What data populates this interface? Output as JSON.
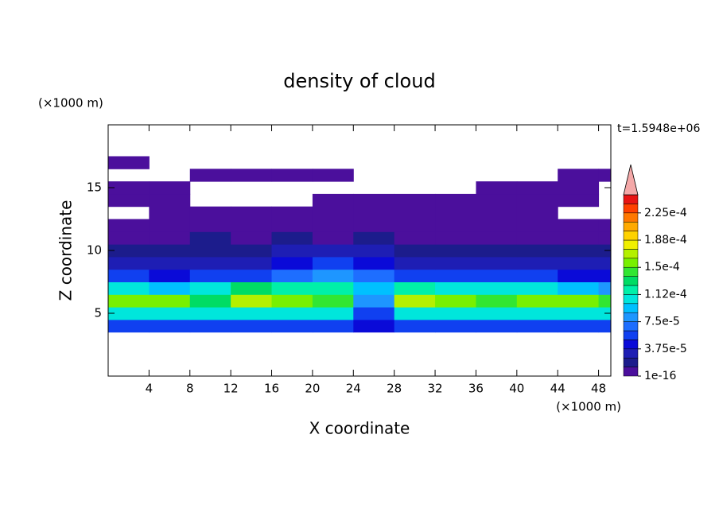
{
  "chart_data": {
    "type": "contour",
    "title": "density of cloud",
    "x_label": "X coordinate",
    "y_label": "Z coordinate",
    "x_unit": "(×1000 m)",
    "y_unit": "(×1000 m)",
    "annotation": "t=1.5948e+06",
    "xlim": [
      0,
      49.2
    ],
    "ylim": [
      0,
      20
    ],
    "xticks": [
      4,
      8,
      12,
      16,
      20,
      24,
      28,
      32,
      36,
      40,
      44,
      48
    ],
    "yticks": [
      5,
      10,
      15
    ],
    "x": [
      2,
      6,
      10,
      14,
      18,
      22,
      26,
      30,
      34,
      38,
      42,
      46,
      50
    ],
    "z": [
      4,
      5,
      6,
      7,
      8,
      9,
      10,
      11,
      12,
      13,
      14,
      15,
      16,
      17
    ],
    "values": [
      [
        5e-05,
        5e-05,
        5e-05,
        5e-05,
        5e-05,
        5e-05,
        4e-05,
        5e-05,
        5e-05,
        5e-05,
        5e-05,
        5e-05,
        5e-05
      ],
      [
        0.000105,
        0.0001,
        0.000105,
        0.00011,
        0.0001,
        0.0001,
        6e-05,
        0.000105,
        0.0001,
        0.0001,
        0.000105,
        0.0001,
        0.0001
      ],
      [
        0.00016,
        0.00016,
        0.00013,
        0.00017,
        0.000155,
        0.00014,
        8e-05,
        0.00017,
        0.00015,
        0.000145,
        0.00016,
        0.00016,
        0.00014
      ],
      [
        0.00011,
        9e-05,
        0.0001,
        0.000135,
        0.00012,
        0.000115,
        9e-05,
        0.00012,
        0.0001,
        0.0001,
        0.00011,
        9e-05,
        8e-05
      ],
      [
        5e-05,
        4e-05,
        5e-05,
        6e-05,
        7e-05,
        8e-05,
        7e-05,
        6e-05,
        5e-05,
        5e-05,
        5e-05,
        4e-05,
        4e-05
      ],
      [
        3e-05,
        2.5e-05,
        3e-05,
        3.5e-05,
        4e-05,
        5e-05,
        4e-05,
        3.5e-05,
        3e-05,
        3e-05,
        3e-05,
        2.5e-05,
        2.5e-05
      ],
      [
        1.5e-05,
        1.5e-05,
        2e-05,
        2e-05,
        2.5e-05,
        2.5e-05,
        2.5e-05,
        2e-05,
        2e-05,
        1.5e-05,
        1.5e-05,
        2e-05,
        2e-05
      ],
      [
        5e-06,
        8e-06,
        1.5e-05,
        1e-05,
        1.3e-05,
        1e-05,
        1.3e-05,
        1e-05,
        8e-06,
        5e-06,
        5e-06,
        5e-06,
        5e-06
      ],
      [
        1e-06,
        1e-06,
        1e-06,
        1e-06,
        1e-06,
        1e-06,
        1e-06,
        1e-06,
        1e-06,
        1e-06,
        1e-06,
        1e-06,
        1e-06
      ],
      [
        0,
        1e-06,
        1e-06,
        1e-06,
        1e-06,
        1e-06,
        1e-06,
        1e-06,
        1e-06,
        1e-06,
        1e-06,
        0,
        0
      ],
      [
        1e-06,
        1e-06,
        0,
        0,
        0,
        1e-06,
        1e-06,
        1e-06,
        1e-06,
        1e-06,
        1e-06,
        1e-06,
        0
      ],
      [
        1e-06,
        1e-06,
        0,
        0,
        0,
        0,
        0,
        0,
        0,
        1e-06,
        1e-06,
        1e-06,
        0
      ],
      [
        0,
        0,
        1e-06,
        1e-06,
        1e-06,
        1e-06,
        0,
        0,
        0,
        0,
        0,
        1e-06,
        1e-06
      ],
      [
        1e-06,
        0,
        0,
        0,
        0,
        0,
        0,
        0,
        0,
        0,
        0,
        0,
        0
      ]
    ],
    "colorbar": {
      "levels": [
        1e-16,
        1.25e-05,
        2.5e-05,
        3.75e-05,
        5e-05,
        6.25e-05,
        7.5e-05,
        8.75e-05,
        0.0001,
        0.0001125,
        0.000125,
        0.0001375,
        0.00015,
        0.0001625,
        0.000175,
        0.0001875,
        0.0002,
        0.0002125,
        0.000225,
        0.0002375,
        0.00025
      ],
      "colors": [
        "#4b0f9c",
        "#1c1c8c",
        "#1e1eb4",
        "#0a0ad8",
        "#1040f0",
        "#1e6eff",
        "#1e96ff",
        "#00c0ff",
        "#00e6dc",
        "#00f0a8",
        "#00dc64",
        "#32e632",
        "#78f000",
        "#b4f000",
        "#f0f000",
        "#ffd200",
        "#ffaa00",
        "#ff7800",
        "#ff4000",
        "#e81414"
      ],
      "extend_color": "#f4a8a8",
      "ticks": [
        {
          "value": 1e-16,
          "label": "1e-16"
        },
        {
          "value": 3.75e-05,
          "label": "3.75e-5"
        },
        {
          "value": 7.5e-05,
          "label": "7.5e-5"
        },
        {
          "value": 0.0001125,
          "label": "1.12e-4"
        },
        {
          "value": 0.00015,
          "label": "1.5e-4"
        },
        {
          "value": 0.0001875,
          "label": "1.88e-4"
        },
        {
          "value": 0.000225,
          "label": "2.25e-4"
        }
      ]
    }
  }
}
